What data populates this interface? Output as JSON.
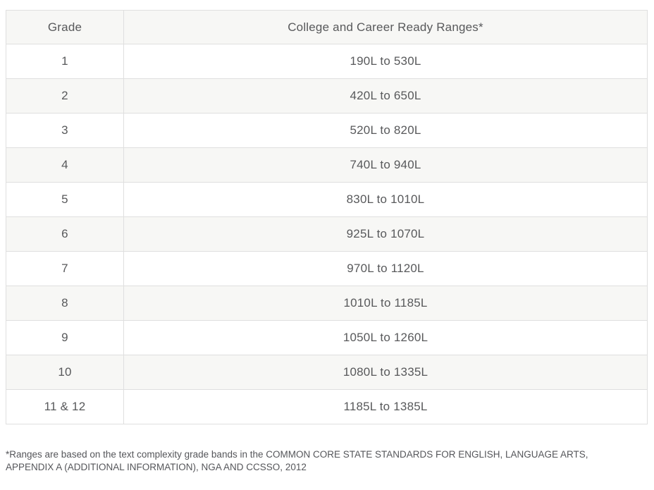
{
  "table": {
    "columns": [
      {
        "key": "grade",
        "label": "Grade"
      },
      {
        "key": "range",
        "label": "College and Career Ready Ranges*"
      }
    ],
    "rows": [
      {
        "grade": "1",
        "range": "190L to 530L"
      },
      {
        "grade": "2",
        "range": "420L to 650L"
      },
      {
        "grade": "3",
        "range": "520L to 820L"
      },
      {
        "grade": "4",
        "range": "740L to 940L"
      },
      {
        "grade": "5",
        "range": "830L to 1010L"
      },
      {
        "grade": "6",
        "range": "925L to 1070L"
      },
      {
        "grade": "7",
        "range": "970L to 1120L"
      },
      {
        "grade": "8",
        "range": "1010L to 1185L"
      },
      {
        "grade": "9",
        "range": "1050L to 1260L"
      },
      {
        "grade": "10",
        "range": "1080L to 1335L"
      },
      {
        "grade": "11 & 12",
        "range": "1185L to 1385L"
      }
    ]
  },
  "footnote": "*Ranges are based on the text complexity grade bands in the COMMON CORE STATE STANDARDS FOR ENGLISH, LANGUAGE ARTS, APPENDIX A (ADDITIONAL INFORMATION), NGA AND CCSSO, 2012",
  "colors": {
    "stripe_bg": "#f7f7f5",
    "border": "#dfdfdf",
    "text": "#58595b"
  }
}
